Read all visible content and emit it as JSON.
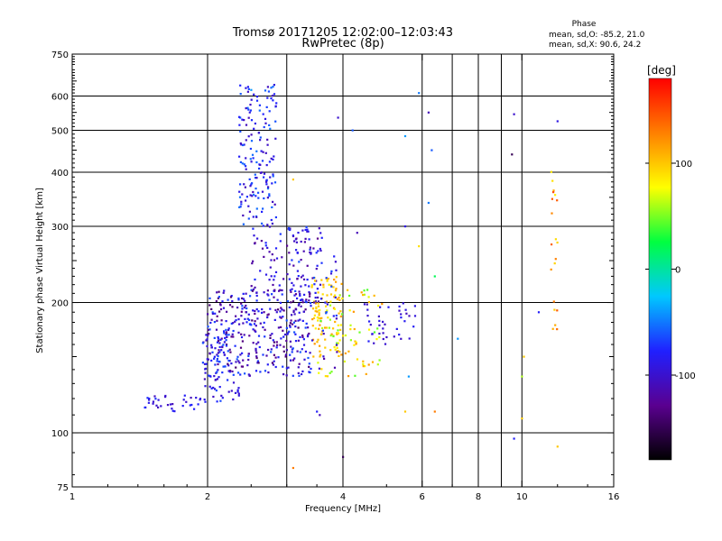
{
  "chart_data": {
    "type": "scatter",
    "title": "Tromsø 20171205 12:02:00–12:03:43",
    "subtitle": "RwPretec (8p)",
    "xlabel": "Frequency [MHz]",
    "ylabel": "Stationary phase Virtual Height [km]",
    "xscale": "log",
    "yscale": "log",
    "xlim": [
      1,
      16
    ],
    "ylim": [
      75,
      750
    ],
    "grid": true,
    "x_ticks": [
      {
        "value": 1,
        "label": "1"
      },
      {
        "value": 2,
        "label": "2"
      },
      {
        "value": 4,
        "label": "4"
      },
      {
        "value": 6,
        "label": "6"
      },
      {
        "value": 8,
        "label": "8"
      },
      {
        "value": 10,
        "label": "10"
      },
      {
        "value": 16,
        "label": "16"
      }
    ],
    "y_ticks": [
      {
        "value": 75,
        "label": "75"
      },
      {
        "value": 100,
        "label": "100"
      },
      {
        "value": 200,
        "label": "200"
      },
      {
        "value": 300,
        "label": "300"
      },
      {
        "value": 400,
        "label": "400"
      },
      {
        "value": 500,
        "label": "500"
      },
      {
        "value": 600,
        "label": "600"
      },
      {
        "value": 750,
        "label": "750"
      }
    ],
    "x_grid": [
      2,
      3,
      4,
      6,
      7,
      8,
      9,
      10
    ],
    "y_grid": [
      100,
      200,
      300,
      400,
      500,
      600
    ],
    "stats": {
      "heading": "Phase",
      "line1": "mean, sd,O: -85.2, 21.0",
      "line2": "mean, sd,X:  90.6, 24.2"
    },
    "colorbar": {
      "label": "[deg]",
      "range": [
        -180,
        180
      ],
      "ticks": [
        {
          "value": 100,
          "label": "100"
        },
        {
          "value": 0,
          "label": "0"
        },
        {
          "value": -100,
          "label": "-100"
        }
      ],
      "colors": [
        "#000000",
        "#5a0090",
        "#2020ff",
        "#00c8ff",
        "#00ff40",
        "#ffff00",
        "#ff8000",
        "#ff0000"
      ]
    },
    "clusters": [
      {
        "f_range": [
          1.45,
          2.0
        ],
        "h_range": [
          112,
          122
        ],
        "n": 35,
        "phase": [
          -110,
          -70
        ]
      },
      {
        "f_range": [
          1.95,
          2.35
        ],
        "h_range": [
          118,
          175
        ],
        "n": 90,
        "phase": [
          -110,
          -60
        ]
      },
      {
        "f_range": [
          2.0,
          3.4
        ],
        "h_range": [
          135,
          215
        ],
        "n": 320,
        "phase": [
          -140,
          -60
        ]
      },
      {
        "f_range": [
          2.35,
          2.85
        ],
        "h_range": [
          300,
          640
        ],
        "n": 160,
        "phase": [
          -110,
          -50
        ]
      },
      {
        "f_range": [
          2.5,
          3.6
        ],
        "h_range": [
          200,
          300
        ],
        "n": 110,
        "phase": [
          -130,
          -70
        ]
      },
      {
        "f_range": [
          3.4,
          4.0
        ],
        "h_range": [
          150,
          230
        ],
        "n": 90,
        "phase": [
          80,
          120
        ]
      },
      {
        "f_range": [
          3.5,
          4.9
        ],
        "h_range": [
          135,
          215
        ],
        "n": 80,
        "phase": [
          40,
          120
        ]
      },
      {
        "f_range": [
          3.0,
          3.9
        ],
        "h_range": [
          140,
          300
        ],
        "n": 70,
        "phase": [
          -120,
          -60
        ]
      },
      {
        "f_range": [
          4.4,
          5.8
        ],
        "h_range": [
          160,
          200
        ],
        "n": 40,
        "phase": [
          -110,
          -80
        ]
      },
      {
        "f_range": [
          11.6,
          12.0
        ],
        "h_range": [
          170,
          410
        ],
        "n": 20,
        "phase": [
          80,
          150
        ]
      }
    ],
    "points": [
      {
        "f": 5.9,
        "h": 610,
        "p": -50
      },
      {
        "f": 6.2,
        "h": 550,
        "p": -110
      },
      {
        "f": 9.6,
        "h": 545,
        "p": -100
      },
      {
        "f": 12.0,
        "h": 525,
        "p": -90
      },
      {
        "f": 3.9,
        "h": 535,
        "p": -100
      },
      {
        "f": 5.5,
        "h": 485,
        "p": -40
      },
      {
        "f": 4.2,
        "h": 500,
        "p": -60
      },
      {
        "f": 6.3,
        "h": 450,
        "p": -60
      },
      {
        "f": 9.5,
        "h": 440,
        "p": -150
      },
      {
        "f": 3.1,
        "h": 385,
        "p": 100
      },
      {
        "f": 6.2,
        "h": 340,
        "p": -50
      },
      {
        "f": 5.5,
        "h": 300,
        "p": -90
      },
      {
        "f": 4.3,
        "h": 290,
        "p": -110
      },
      {
        "f": 5.9,
        "h": 270,
        "p": 90
      },
      {
        "f": 6.4,
        "h": 230,
        "p": 20
      },
      {
        "f": 7.2,
        "h": 165,
        "p": -40
      },
      {
        "f": 10.9,
        "h": 190,
        "p": -80
      },
      {
        "f": 5.6,
        "h": 135,
        "p": -40
      },
      {
        "f": 5.5,
        "h": 112,
        "p": 100
      },
      {
        "f": 6.4,
        "h": 112,
        "p": 130
      },
      {
        "f": 3.5,
        "h": 112,
        "p": -80
      },
      {
        "f": 3.55,
        "h": 110,
        "p": -110
      },
      {
        "f": 4.0,
        "h": 88,
        "p": -150
      },
      {
        "f": 3.1,
        "h": 83,
        "p": 130
      },
      {
        "f": 10.0,
        "h": 108,
        "p": 100
      },
      {
        "f": 10.0,
        "h": 135,
        "p": 60
      },
      {
        "f": 10.1,
        "h": 150,
        "p": 100
      },
      {
        "f": 12.0,
        "h": 93,
        "p": 100
      },
      {
        "f": 9.6,
        "h": 97,
        "p": -80
      },
      {
        "f": 2.5,
        "h": 620,
        "p": -40
      }
    ]
  }
}
